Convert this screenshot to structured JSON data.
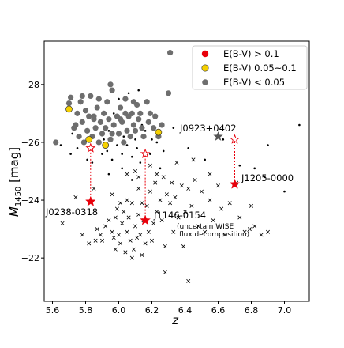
{
  "chart_data": {
    "type": "scatter",
    "xlabel": "z",
    "ylabel": "M1450 [mag]",
    "ylabel_main": "M",
    "ylabel_sub": "1450",
    "ylabel_unit": " [mag]",
    "xlim": [
      5.55,
      7.15
    ],
    "ylim": [
      -20.5,
      -29.5
    ],
    "inverted_y": true,
    "x_ticks": [
      5.6,
      5.8,
      6.0,
      6.2,
      6.4,
      6.6,
      6.8,
      7.0
    ],
    "x_tick_labels": [
      "5.6",
      "5.8",
      "6.0",
      "6.2",
      "6.4",
      "6.6",
      "6.8",
      "7.0"
    ],
    "y_ticks": [
      -22,
      -24,
      -26,
      -28
    ],
    "y_tick_labels": [
      "−22",
      "−24",
      "−26",
      "−28"
    ],
    "grid": false,
    "legend": {
      "position": "top-right",
      "entries": [
        {
          "label": "E(B-V) > 0.1",
          "color": "#e8000b"
        },
        {
          "label": "E(B-V) 0.05~0.1",
          "color": "#f5d000"
        },
        {
          "label": "E(B-V) < 0.05",
          "color": "#6e6e6e"
        }
      ]
    },
    "colors": {
      "red": "#e8000b",
      "yellow": "#f5d000",
      "gray": "#6e6e6e",
      "dark_gray": "#555555",
      "black": "#000000"
    },
    "gray_circles": [
      [
        5.7,
        -27.35
      ],
      [
        5.71,
        -27.55
      ],
      [
        5.73,
        -26.5
      ],
      [
        5.75,
        -27.0
      ],
      [
        5.76,
        -26.2
      ],
      [
        5.77,
        -27.4
      ],
      [
        5.78,
        -26.7
      ],
      [
        5.79,
        -26.0
      ],
      [
        5.8,
        -27.1
      ],
      [
        5.81,
        -26.4
      ],
      [
        5.82,
        -26.9
      ],
      [
        5.83,
        -27.6
      ],
      [
        5.84,
        -26.2
      ],
      [
        5.85,
        -26.8
      ],
      [
        5.86,
        -26.5
      ],
      [
        5.87,
        -27.2
      ],
      [
        5.88,
        -26.0
      ],
      [
        5.89,
        -26.7
      ],
      [
        5.9,
        -26.3
      ],
      [
        5.91,
        -27.0
      ],
      [
        5.92,
        -26.5
      ],
      [
        5.93,
        -27.4
      ],
      [
        5.94,
        -26.8
      ],
      [
        5.95,
        -26.1
      ],
      [
        5.96,
        -27.8
      ],
      [
        5.97,
        -26.6
      ],
      [
        5.99,
        -26.9
      ],
      [
        6.0,
        -26.3
      ],
      [
        6.01,
        -27.2
      ],
      [
        6.02,
        -26.7
      ],
      [
        6.03,
        -26.0
      ],
      [
        6.04,
        -27.5
      ],
      [
        6.05,
        -26.4
      ],
      [
        6.06,
        -26.9
      ],
      [
        6.07,
        -26.2
      ],
      [
        6.08,
        -27.0
      ],
      [
        6.09,
        -26.6
      ],
      [
        6.1,
        -26.4
      ],
      [
        6.11,
        -27.3
      ],
      [
        6.12,
        -26.8
      ],
      [
        6.13,
        -27.0
      ],
      [
        6.14,
        -26.5
      ],
      [
        6.15,
        -26.2
      ],
      [
        6.17,
        -27.4
      ],
      [
        6.18,
        -26.7
      ],
      [
        6.19,
        -27.0
      ],
      [
        6.21,
        -26.5
      ],
      [
        6.22,
        -26.9
      ],
      [
        6.24,
        -26.2
      ],
      [
        6.26,
        -26.6
      ],
      [
        6.3,
        -27.7
      ],
      [
        6.31,
        -29.1
      ],
      [
        5.78,
        -27.6
      ],
      [
        5.85,
        -26.9
      ],
      [
        5.88,
        -27.5
      ],
      [
        5.96,
        -26.3
      ],
      [
        6.04,
        -27.0
      ],
      [
        6.09,
        -27.4
      ],
      [
        5.95,
        -28.0
      ],
      [
        5.62,
        -26.0
      ],
      [
        5.74,
        -26.6
      ],
      [
        6.01,
        -26.8
      ]
    ],
    "yellow_circles": [
      [
        5.7,
        -27.15
      ],
      [
        5.82,
        -26.1
      ],
      [
        5.92,
        -25.9
      ],
      [
        6.24,
        -26.35
      ]
    ],
    "black_dots": [
      [
        5.65,
        -25.9
      ],
      [
        5.71,
        -25.6
      ],
      [
        5.72,
        -26.3
      ],
      [
        5.75,
        -25.8
      ],
      [
        5.81,
        -25.4
      ],
      [
        5.83,
        -26.1
      ],
      [
        5.84,
        -25.3
      ],
      [
        5.87,
        -26.0
      ],
      [
        5.9,
        -25.6
      ],
      [
        5.91,
        -26.1
      ],
      [
        5.93,
        -25.7
      ],
      [
        5.94,
        -26.4
      ],
      [
        5.96,
        -25.4
      ],
      [
        5.97,
        -27.0
      ],
      [
        5.99,
        -25.9
      ],
      [
        6.0,
        -27.5
      ],
      [
        6.02,
        -25.6
      ],
      [
        6.03,
        -26.2
      ],
      [
        6.05,
        -25.9
      ],
      [
        6.06,
        -27.7
      ],
      [
        6.08,
        -25.5
      ],
      [
        6.1,
        -26.1
      ],
      [
        6.11,
        -25.8
      ],
      [
        6.12,
        -27.8
      ],
      [
        6.13,
        -25.3
      ],
      [
        6.14,
        -26.6
      ],
      [
        6.16,
        -26.4
      ],
      [
        6.19,
        -25.6
      ],
      [
        6.2,
        -26.1
      ],
      [
        6.23,
        -26.0
      ],
      [
        6.27,
        -25.7
      ],
      [
        6.33,
        -26.5
      ],
      [
        6.42,
        -25.8
      ],
      [
        6.52,
        -25.4
      ],
      [
        6.63,
        -26.1
      ],
      [
        6.73,
        -25.2
      ],
      [
        6.82,
        -25.1
      ],
      [
        6.88,
        -24.8
      ],
      [
        6.9,
        -25.9
      ],
      [
        7.0,
        -24.3
      ],
      [
        7.09,
        -26.6
      ],
      [
        6.02,
        -25.1
      ],
      [
        6.08,
        -24.7
      ],
      [
        5.94,
        -24.9
      ],
      [
        6.25,
        -25.1
      ]
    ],
    "crosses": [
      [
        5.66,
        -23.2
      ],
      [
        5.74,
        -24.1
      ],
      [
        5.78,
        -22.8
      ],
      [
        5.82,
        -22.5
      ],
      [
        5.85,
        -24.4
      ],
      [
        5.86,
        -22.6
      ],
      [
        5.87,
        -23.0
      ],
      [
        5.89,
        -22.8
      ],
      [
        5.9,
        -22.6
      ],
      [
        5.92,
        -23.1
      ],
      [
        5.94,
        -23.3
      ],
      [
        5.96,
        -22.9
      ],
      [
        5.97,
        -22.7
      ],
      [
        5.98,
        -23.4
      ],
      [
        5.99,
        -23.7
      ],
      [
        6.0,
        -22.8
      ],
      [
        6.01,
        -22.5
      ],
      [
        6.02,
        -23.2
      ],
      [
        6.03,
        -23.6
      ],
      [
        6.04,
        -22.2
      ],
      [
        6.05,
        -22.9
      ],
      [
        6.06,
        -23.4
      ],
      [
        6.07,
        -22.6
      ],
      [
        6.08,
        -23.9
      ],
      [
        6.09,
        -22.3
      ],
      [
        6.1,
        -23.1
      ],
      [
        6.11,
        -22.7
      ],
      [
        6.12,
        -23.5
      ],
      [
        6.13,
        -22.8
      ],
      [
        6.14,
        -22.1
      ],
      [
        6.15,
        -23.3
      ],
      [
        6.16,
        -22.5
      ],
      [
        6.17,
        -23.8
      ],
      [
        6.18,
        -22.9
      ],
      [
        6.19,
        -24.3
      ],
      [
        6.2,
        -22.6
      ],
      [
        6.21,
        -23.2
      ],
      [
        6.22,
        -24.6
      ],
      [
        6.23,
        -23.6
      ],
      [
        6.25,
        -24.0
      ],
      [
        6.26,
        -23.3
      ],
      [
        6.27,
        -24.8
      ],
      [
        6.28,
        -22.4
      ],
      [
        6.29,
        -24.2
      ],
      [
        6.31,
        -23.9
      ],
      [
        6.32,
        -24.6
      ],
      [
        6.33,
        -22.9
      ],
      [
        6.34,
        -24.1
      ],
      [
        6.36,
        -23.4
      ],
      [
        6.38,
        -24.5
      ],
      [
        6.39,
        -22.4
      ],
      [
        6.4,
        -23.6
      ],
      [
        6.42,
        -24.4
      ],
      [
        6.44,
        -23.8
      ],
      [
        6.46,
        -24.7
      ],
      [
        6.48,
        -23.1
      ],
      [
        6.5,
        -24.3
      ],
      [
        6.52,
        -22.9
      ],
      [
        6.55,
        -24.0
      ],
      [
        6.57,
        -23.3
      ],
      [
        6.6,
        -24.5
      ],
      [
        6.62,
        -23.7
      ],
      [
        6.64,
        -22.8
      ],
      [
        6.67,
        -23.9
      ],
      [
        6.71,
        -24.6
      ],
      [
        6.73,
        -23.4
      ],
      [
        6.76,
        -22.9
      ],
      [
        6.79,
        -23.0
      ],
      [
        6.8,
        -23.8
      ],
      [
        6.82,
        -23.1
      ],
      [
        6.86,
        -22.8
      ],
      [
        6.9,
        -22.9
      ],
      [
        6.1,
        -25.0
      ],
      [
        6.12,
        -24.4
      ],
      [
        6.05,
        -24.9
      ],
      [
        6.14,
        -23.9
      ],
      [
        6.19,
        -25.2
      ],
      [
        6.23,
        -24.9
      ],
      [
        6.35,
        -25.3
      ],
      [
        6.45,
        -25.4
      ],
      [
        6.55,
        -24.9
      ],
      [
        6.28,
        -21.5
      ],
      [
        5.98,
        -22.3
      ],
      [
        6.42,
        -21.2
      ],
      [
        6.05,
        -24.0
      ],
      [
        5.96,
        -24.2
      ],
      [
        6.08,
        -22.0
      ],
      [
        6.01,
        -23.9
      ],
      [
        6.12,
        -24.8
      ]
    ],
    "reddened_quasars": [
      {
        "name": "J0238-0318",
        "z": 5.83,
        "M_obs": -23.95,
        "M_corr": -25.8
      },
      {
        "name": "J1146-0154",
        "z": 6.16,
        "M_obs": -23.3,
        "M_corr": -25.6
      },
      {
        "name": "J1205-0000",
        "z": 6.7,
        "M_obs": -24.55,
        "M_corr": -26.1
      }
    ],
    "j0923": {
      "name": "J0923+0402",
      "z": 6.6,
      "M": -26.2
    },
    "annotations": {
      "j0238_label": "J0238-0318",
      "j1146_label": "J1146-0154",
      "j1146_note_line1": "(uncertain WISE",
      "j1146_note_line2": "flux decomposition)",
      "j0923_label": "J0923+0402",
      "j1205_label": "J1205-0000"
    }
  }
}
